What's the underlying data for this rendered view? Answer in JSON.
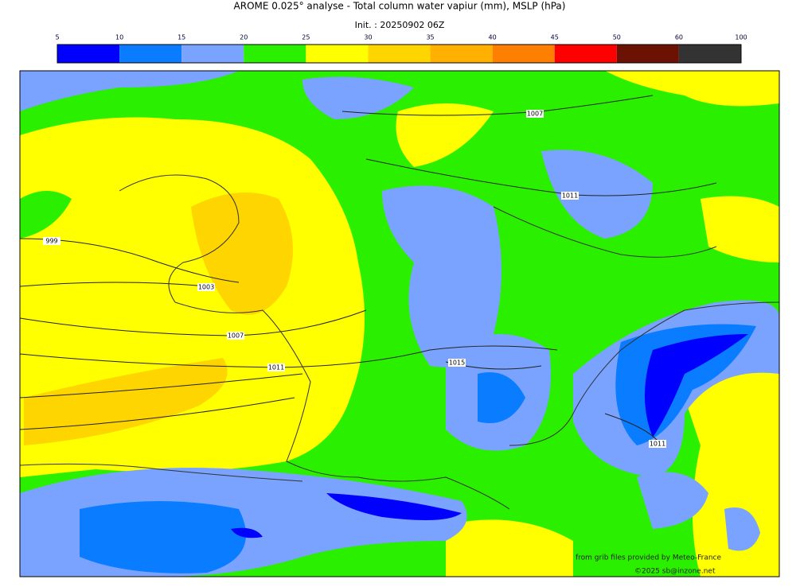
{
  "header": {
    "title": "AROME 0.025° analyse - Total column water vapiur (mm), MSLP (hPa)",
    "init": "Init. : 20250902 06Z"
  },
  "colorbar": {
    "ticks": [
      5,
      10,
      15,
      20,
      25,
      30,
      35,
      40,
      45,
      50,
      60,
      100
    ],
    "colors": [
      "#0000ff",
      "#0a7cff",
      "#7aa2ff",
      "#2af000",
      "#ffff00",
      "#ffd500",
      "#ffb000",
      "#ff8000",
      "#ff0000",
      "#6b1205",
      "#333333"
    ]
  },
  "isobar_labels": [
    "1007",
    "1011",
    "999",
    "1003",
    "1007",
    "1011",
    "1015",
    "1011"
  ],
  "credits": {
    "source": "from grib files provided by Meteo-France",
    "copyright": "©2025 sb@inzone.net"
  }
}
